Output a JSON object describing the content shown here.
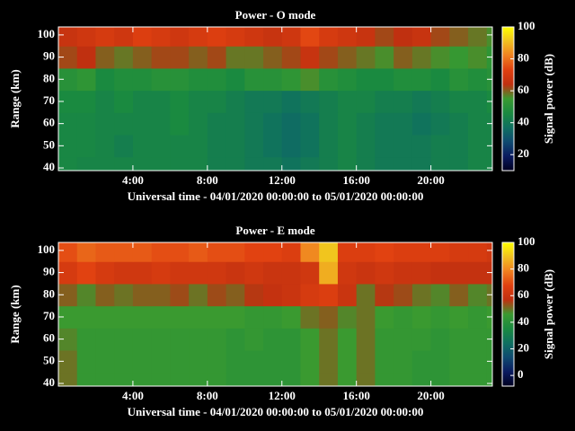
{
  "chart_data": [
    {
      "type": "heatmap",
      "title": "Power - O mode",
      "xlabel": "Universal time - 04/01/2020 00:00:00 to 05/01/2020 00:00:00",
      "ylabel": "Range (km)",
      "colorbar_label": "Signal power (dB)",
      "x": [
        0,
        1,
        2,
        3,
        4,
        5,
        6,
        7,
        8,
        9,
        10,
        11,
        12,
        13,
        14,
        15,
        16,
        17,
        18,
        19,
        20,
        21,
        22,
        23
      ],
      "y": [
        40,
        50,
        60,
        70,
        80,
        90,
        100
      ],
      "z": [
        [
          45,
          44,
          44,
          44,
          44,
          44,
          44,
          44,
          42,
          42,
          40,
          40,
          38,
          40,
          42,
          44,
          42,
          40,
          40,
          40,
          42,
          42,
          44,
          44
        ],
        [
          45,
          45,
          44,
          42,
          44,
          44,
          44,
          44,
          42,
          42,
          40,
          38,
          36,
          38,
          42,
          44,
          42,
          40,
          40,
          40,
          42,
          42,
          44,
          44
        ],
        [
          45,
          45,
          44,
          44,
          44,
          44,
          46,
          44,
          42,
          42,
          40,
          38,
          36,
          38,
          42,
          44,
          42,
          40,
          40,
          38,
          40,
          42,
          44,
          44
        ],
        [
          46,
          46,
          44,
          46,
          44,
          44,
          46,
          44,
          44,
          42,
          40,
          40,
          38,
          40,
          42,
          44,
          44,
          42,
          42,
          40,
          42,
          44,
          44,
          46
        ],
        [
          50,
          52,
          46,
          48,
          48,
          50,
          50,
          48,
          48,
          46,
          50,
          50,
          52,
          56,
          50,
          48,
          46,
          46,
          48,
          48,
          46,
          50,
          48,
          50
        ],
        [
          62,
          64,
          60,
          58,
          60,
          62,
          62,
          60,
          62,
          58,
          58,
          60,
          62,
          66,
          62,
          60,
          58,
          56,
          60,
          58,
          56,
          54,
          56,
          52
        ],
        [
          66,
          68,
          70,
          68,
          72,
          70,
          68,
          70,
          72,
          70,
          68,
          66,
          68,
          74,
          70,
          68,
          66,
          62,
          64,
          66,
          62,
          60,
          58,
          56
        ]
      ],
      "xlim": [
        0,
        23.3
      ],
      "ylim": [
        38.8,
        103.6
      ],
      "xticks": [
        {
          "value": 4,
          "label": "4:00"
        },
        {
          "value": 8,
          "label": "8:00"
        },
        {
          "value": 12,
          "label": "12:00"
        },
        {
          "value": 16,
          "label": "16:00"
        },
        {
          "value": 20,
          "label": "20:00"
        }
      ],
      "yticks": [
        40,
        50,
        60,
        70,
        80,
        90,
        100
      ],
      "zlim": [
        10,
        100
      ],
      "zticks": [
        20,
        40,
        60,
        80,
        100
      ],
      "colormap": [
        "#000020",
        "#0a1a60",
        "#0f4a70",
        "#0f7060",
        "#1a8a40",
        "#3a9a30",
        "#c03010",
        "#e04010",
        "#f08020",
        "#f0c020",
        "#ffff00"
      ]
    },
    {
      "type": "heatmap",
      "title": "Power - E mode",
      "xlabel": "Universal time - 04/01/2020 00:00:00 to 05/01/2020 00:00:00",
      "ylabel": "Range (km)",
      "colorbar_label": "Signal power (dB)",
      "x": [
        0,
        1,
        2,
        3,
        4,
        5,
        6,
        7,
        8,
        9,
        10,
        11,
        12,
        13,
        14,
        15,
        16,
        17,
        18,
        19,
        20,
        21,
        22,
        23
      ],
      "y": [
        40,
        50,
        60,
        70,
        80,
        90,
        100
      ],
      "z": [
        [
          50,
          44,
          44,
          44,
          44,
          44,
          44,
          44,
          44,
          42,
          42,
          42,
          42,
          46,
          50,
          46,
          50,
          44,
          44,
          42,
          42,
          44,
          44,
          44
        ],
        [
          50,
          44,
          44,
          44,
          44,
          44,
          44,
          44,
          44,
          42,
          42,
          42,
          42,
          46,
          50,
          46,
          50,
          44,
          44,
          42,
          42,
          44,
          44,
          44
        ],
        [
          48,
          44,
          44,
          44,
          44,
          44,
          44,
          44,
          44,
          42,
          44,
          42,
          42,
          46,
          50,
          46,
          50,
          44,
          44,
          44,
          42,
          44,
          44,
          44
        ],
        [
          46,
          46,
          46,
          46,
          46,
          46,
          46,
          46,
          46,
          46,
          44,
          44,
          46,
          50,
          52,
          48,
          50,
          46,
          44,
          46,
          44,
          46,
          44,
          46
        ],
        [
          52,
          48,
          52,
          50,
          52,
          52,
          54,
          50,
          54,
          52,
          56,
          58,
          60,
          64,
          66,
          60,
          50,
          56,
          54,
          50,
          48,
          52,
          48,
          50
        ],
        [
          64,
          68,
          64,
          62,
          62,
          64,
          62,
          62,
          62,
          60,
          62,
          60,
          60,
          62,
          86,
          62,
          60,
          62,
          60,
          60,
          58,
          58,
          58,
          58
        ],
        [
          70,
          74,
          72,
          72,
          72,
          70,
          70,
          72,
          70,
          70,
          68,
          68,
          66,
          80,
          90,
          66,
          66,
          68,
          66,
          66,
          66,
          64,
          64,
          62
        ]
      ],
      "xlim": [
        0,
        23.3
      ],
      "ylim": [
        38.8,
        103.6
      ],
      "xticks": [
        {
          "value": 4,
          "label": "4:00"
        },
        {
          "value": 8,
          "label": "8:00"
        },
        {
          "value": 12,
          "label": "12:00"
        },
        {
          "value": 16,
          "label": "16:00"
        },
        {
          "value": 20,
          "label": "20:00"
        }
      ],
      "yticks": [
        40,
        50,
        60,
        70,
        80,
        90,
        100
      ],
      "zlim": [
        -8,
        100
      ],
      "zticks": [
        0,
        20,
        40,
        60,
        80,
        100
      ],
      "colormap": [
        "#000020",
        "#0a1a60",
        "#0f4a70",
        "#0f7060",
        "#1a8a40",
        "#3a9a30",
        "#c03010",
        "#e04010",
        "#f08020",
        "#f0c020",
        "#ffff00"
      ]
    }
  ]
}
